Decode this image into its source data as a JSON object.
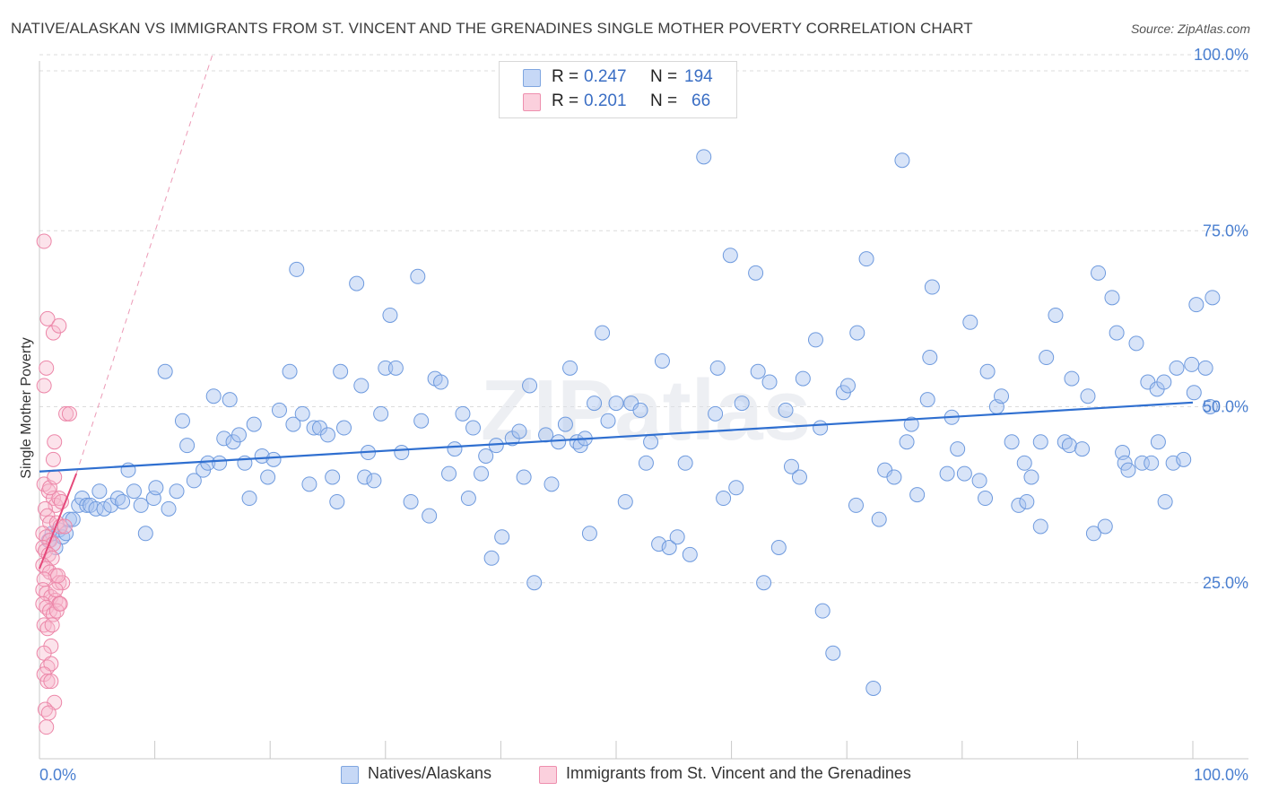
{
  "title": "NATIVE/ALASKAN VS IMMIGRANTS FROM ST. VINCENT AND THE GRENADINES SINGLE MOTHER POVERTY CORRELATION CHART",
  "source": "Source: ZipAtlas.com",
  "watermark": "ZIPatlas",
  "legend": {
    "series1": {
      "r_label": "R =",
      "r_value": "0.247",
      "n_label": "N =",
      "n_value": "194",
      "color": "#a8c4f0",
      "border": "#7fa6e0"
    },
    "series2": {
      "r_label": "R =",
      "r_value": "0.201",
      "n_label": "N =",
      "n_value": "66",
      "color": "#f8b8cc",
      "border": "#ee8fae"
    }
  },
  "bottom_legend": {
    "item1": "Natives/Alaskans",
    "item2": "Immigrants from St. Vincent and the Grenadines"
  },
  "chart_data": {
    "type": "scatter",
    "title": "NATIVE/ALASKAN VS IMMIGRANTS FROM ST. VINCENT AND THE GRENADINES SINGLE MOTHER POVERTY CORRELATION CHART",
    "xlabel": "",
    "ylabel": "Single Mother Poverty",
    "xlim": [
      0,
      100
    ],
    "ylim": [
      0,
      100
    ],
    "x_tick_labels": [
      "0.0%",
      "100.0%"
    ],
    "y_tick_labels": [
      {
        "value": 100,
        "label": "100.0%"
      },
      {
        "value": 75,
        "label": "75.0%"
      },
      {
        "value": 50,
        "label": "50.0%"
      },
      {
        "value": 25,
        "label": "25.0%"
      }
    ],
    "grid": true,
    "legend_position": "top-center",
    "series": [
      {
        "name": "Natives/Alaskans",
        "color": "#7fa6e0",
        "trend": {
          "x": [
            0,
            100
          ],
          "y": [
            40.8,
            50.6
          ],
          "color": "#2f6fd0"
        },
        "points": [
          [
            0.8,
            31
          ],
          [
            1.1,
            32
          ],
          [
            1.4,
            30
          ],
          [
            1.7,
            32.5
          ],
          [
            2.0,
            31.5
          ],
          [
            2.3,
            32
          ],
          [
            2.6,
            34
          ],
          [
            2.9,
            34
          ],
          [
            3.4,
            36
          ],
          [
            3.7,
            37
          ],
          [
            4.1,
            36
          ],
          [
            4.4,
            36
          ],
          [
            4.9,
            35.5
          ],
          [
            5.2,
            38
          ],
          [
            5.6,
            35.5
          ],
          [
            6.2,
            36
          ],
          [
            6.8,
            37
          ],
          [
            7.2,
            36.5
          ],
          [
            7.7,
            41
          ],
          [
            8.2,
            38
          ],
          [
            8.8,
            36
          ],
          [
            9.2,
            32
          ],
          [
            9.9,
            37
          ],
          [
            10.1,
            38.5
          ],
          [
            10.9,
            55
          ],
          [
            11.2,
            35.5
          ],
          [
            11.9,
            38
          ],
          [
            12.4,
            48
          ],
          [
            12.8,
            44.5
          ],
          [
            13.4,
            39.5
          ],
          [
            14.2,
            41
          ],
          [
            14.6,
            42
          ],
          [
            15.1,
            51.5
          ],
          [
            15.6,
            42
          ],
          [
            16.0,
            45.5
          ],
          [
            16.5,
            51
          ],
          [
            16.8,
            45
          ],
          [
            17.3,
            46
          ],
          [
            17.8,
            42
          ],
          [
            18.2,
            37
          ],
          [
            18.6,
            47.5
          ],
          [
            19.3,
            43
          ],
          [
            19.8,
            40
          ],
          [
            20.3,
            42.5
          ],
          [
            20.8,
            49.5
          ],
          [
            21.7,
            55
          ],
          [
            22.0,
            47.5
          ],
          [
            22.3,
            69.5
          ],
          [
            22.8,
            49
          ],
          [
            23.4,
            39
          ],
          [
            23.8,
            47
          ],
          [
            24.3,
            47
          ],
          [
            25.0,
            46
          ],
          [
            25.4,
            40
          ],
          [
            25.8,
            36.5
          ],
          [
            26.1,
            55
          ],
          [
            26.4,
            47
          ],
          [
            27.5,
            67.5
          ],
          [
            27.9,
            53
          ],
          [
            28.2,
            40
          ],
          [
            28.5,
            43.5
          ],
          [
            29.0,
            39.5
          ],
          [
            29.6,
            49
          ],
          [
            30.0,
            55.5
          ],
          [
            30.4,
            63
          ],
          [
            30.9,
            55.5
          ],
          [
            31.4,
            43.5
          ],
          [
            32.2,
            36.5
          ],
          [
            32.8,
            68.5
          ],
          [
            33.1,
            48
          ],
          [
            33.8,
            34.5
          ],
          [
            34.3,
            54
          ],
          [
            34.8,
            53.5
          ],
          [
            35.5,
            40.5
          ],
          [
            36.0,
            44
          ],
          [
            36.7,
            49
          ],
          [
            37.2,
            37
          ],
          [
            37.6,
            47
          ],
          [
            38.3,
            40.5
          ],
          [
            38.7,
            43
          ],
          [
            39.2,
            28.5
          ],
          [
            39.6,
            44.5
          ],
          [
            40.1,
            31.5
          ],
          [
            41.0,
            45.5
          ],
          [
            41.6,
            46.5
          ],
          [
            42.0,
            40
          ],
          [
            42.5,
            53
          ],
          [
            42.9,
            25
          ],
          [
            43.9,
            46
          ],
          [
            44.4,
            39
          ],
          [
            45.0,
            45
          ],
          [
            45.6,
            47.5
          ],
          [
            46.0,
            55.5
          ],
          [
            46.6,
            45
          ],
          [
            46.9,
            44.5
          ],
          [
            47.3,
            45.5
          ],
          [
            47.7,
            32
          ],
          [
            48.1,
            50.5
          ],
          [
            48.8,
            60.5
          ],
          [
            49.3,
            48
          ],
          [
            50.0,
            50.5
          ],
          [
            50.8,
            36.5
          ],
          [
            51.3,
            50.5
          ],
          [
            52.1,
            49.5
          ],
          [
            52.6,
            42
          ],
          [
            53.0,
            45
          ],
          [
            53.7,
            30.5
          ],
          [
            54.0,
            56.5
          ],
          [
            54.6,
            30
          ],
          [
            55.3,
            31.5
          ],
          [
            56.0,
            42
          ],
          [
            56.4,
            29
          ],
          [
            57.6,
            85.5
          ],
          [
            58.6,
            49
          ],
          [
            58.8,
            55.5
          ],
          [
            59.3,
            37
          ],
          [
            59.9,
            71.5
          ],
          [
            60.4,
            38.5
          ],
          [
            60.9,
            50.5
          ],
          [
            62.1,
            69
          ],
          [
            62.3,
            55
          ],
          [
            62.8,
            25
          ],
          [
            63.3,
            53.5
          ],
          [
            64.1,
            30
          ],
          [
            64.7,
            49.5
          ],
          [
            65.2,
            41.5
          ],
          [
            65.9,
            40
          ],
          [
            66.2,
            54
          ],
          [
            67.3,
            59.5
          ],
          [
            67.7,
            47
          ],
          [
            67.9,
            21
          ],
          [
            68.8,
            15
          ],
          [
            69.7,
            52
          ],
          [
            70.1,
            53
          ],
          [
            70.8,
            36
          ],
          [
            70.9,
            60.5
          ],
          [
            71.7,
            71
          ],
          [
            72.3,
            10
          ],
          [
            72.8,
            34
          ],
          [
            73.3,
            41
          ],
          [
            74.1,
            40
          ],
          [
            74.8,
            85
          ],
          [
            75.2,
            45
          ],
          [
            75.6,
            47.5
          ],
          [
            76.1,
            37.5
          ],
          [
            77.0,
            51
          ],
          [
            77.2,
            57
          ],
          [
            77.4,
            67
          ],
          [
            78.7,
            40.5
          ],
          [
            79.1,
            48.5
          ],
          [
            79.6,
            44
          ],
          [
            80.2,
            40.5
          ],
          [
            80.7,
            62
          ],
          [
            81.5,
            39.5
          ],
          [
            82.0,
            37
          ],
          [
            82.2,
            55
          ],
          [
            83.0,
            50
          ],
          [
            83.4,
            51.5
          ],
          [
            84.3,
            45
          ],
          [
            84.9,
            36
          ],
          [
            85.4,
            42
          ],
          [
            85.6,
            36.5
          ],
          [
            86.0,
            40
          ],
          [
            86.8,
            45
          ],
          [
            86.8,
            33
          ],
          [
            87.3,
            57
          ],
          [
            88.1,
            63
          ],
          [
            88.9,
            45
          ],
          [
            89.3,
            44.5
          ],
          [
            89.5,
            54
          ],
          [
            90.4,
            44
          ],
          [
            90.9,
            51.5
          ],
          [
            91.4,
            32
          ],
          [
            91.8,
            69
          ],
          [
            92.4,
            33
          ],
          [
            93.0,
            65.5
          ],
          [
            93.4,
            60.5
          ],
          [
            93.9,
            43.5
          ],
          [
            94.1,
            42
          ],
          [
            94.4,
            41
          ],
          [
            95.1,
            59
          ],
          [
            95.6,
            42
          ],
          [
            96.1,
            53.5
          ],
          [
            96.4,
            42
          ],
          [
            96.9,
            52.5
          ],
          [
            97.0,
            45
          ],
          [
            97.5,
            53.5
          ],
          [
            97.6,
            36.5
          ],
          [
            98.3,
            42
          ],
          [
            98.6,
            55.5
          ],
          [
            99.2,
            42.5
          ],
          [
            99.9,
            56
          ],
          [
            100.1,
            52
          ],
          [
            100.3,
            64.5
          ],
          [
            101.1,
            55.5
          ],
          [
            101.7,
            65.5
          ],
          [
            101.5,
            50
          ]
        ]
      },
      {
        "name": "Immigrants from St. Vincent and the Grenadines",
        "color": "#ee8fae",
        "trend": {
          "x": [
            0,
            3.2
          ],
          "y": [
            27,
            40.5
          ],
          "color": "#e5487a",
          "extended_y_at_x15": 100
        },
        "points": [
          [
            0.4,
            73.5
          ],
          [
            0.4,
            53
          ],
          [
            0.6,
            55.5
          ],
          [
            0.7,
            62.5
          ],
          [
            1.2,
            60.5
          ],
          [
            1.7,
            61.5
          ],
          [
            2.3,
            49
          ],
          [
            2.6,
            49
          ],
          [
            1.3,
            45
          ],
          [
            1.2,
            42.5
          ],
          [
            0.4,
            39
          ],
          [
            0.8,
            38
          ],
          [
            1.2,
            37
          ],
          [
            1.4,
            36
          ],
          [
            1.7,
            37
          ],
          [
            0.5,
            35.5
          ],
          [
            0.7,
            34.5
          ],
          [
            0.9,
            33.5
          ],
          [
            1.5,
            33.5
          ],
          [
            1.8,
            33
          ],
          [
            0.3,
            32
          ],
          [
            0.6,
            31.5
          ],
          [
            0.9,
            31
          ],
          [
            1.2,
            30.5
          ],
          [
            0.3,
            30
          ],
          [
            0.5,
            29.5
          ],
          [
            0.8,
            29
          ],
          [
            1.1,
            28.5
          ],
          [
            0.3,
            27.5
          ],
          [
            0.6,
            27
          ],
          [
            0.9,
            26.5
          ],
          [
            1.4,
            26
          ],
          [
            0.4,
            25.5
          ],
          [
            1.7,
            25
          ],
          [
            2.0,
            25
          ],
          [
            0.3,
            24
          ],
          [
            0.6,
            23.5
          ],
          [
            1.0,
            23
          ],
          [
            1.4,
            22.5
          ],
          [
            1.7,
            22
          ],
          [
            0.3,
            22
          ],
          [
            0.6,
            21.5
          ],
          [
            0.9,
            21
          ],
          [
            1.2,
            20.5
          ],
          [
            1.5,
            21
          ],
          [
            1.8,
            22
          ],
          [
            0.4,
            19
          ],
          [
            0.7,
            18.5
          ],
          [
            1.0,
            16
          ],
          [
            0.4,
            15
          ],
          [
            0.7,
            13
          ],
          [
            1.0,
            13.5
          ],
          [
            0.4,
            12
          ],
          [
            0.7,
            11
          ],
          [
            1.0,
            11
          ],
          [
            1.3,
            8
          ],
          [
            0.5,
            7
          ],
          [
            0.8,
            6.5
          ],
          [
            0.6,
            4.5
          ],
          [
            1.4,
            24
          ],
          [
            1.1,
            19
          ],
          [
            1.6,
            26
          ],
          [
            1.9,
            36.5
          ],
          [
            2.2,
            33
          ],
          [
            0.9,
            38.5
          ],
          [
            1.3,
            40
          ]
        ]
      }
    ]
  }
}
